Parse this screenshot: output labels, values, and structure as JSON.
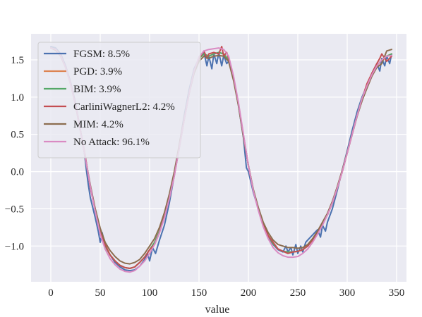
{
  "chart_data": {
    "type": "line",
    "title": "",
    "xlabel": "value",
    "ylabel": "",
    "xlim": [
      -20,
      360
    ],
    "ylim": [
      -1.48,
      1.85
    ],
    "xticks": [
      0,
      50,
      100,
      150,
      200,
      250,
      300,
      350
    ],
    "yticks": [
      -1.0,
      -0.5,
      0.0,
      0.5,
      1.0,
      1.5
    ],
    "xtick_labels": [
      "0",
      "50",
      "100",
      "150",
      "200",
      "250",
      "300",
      "350"
    ],
    "ytick_labels": [
      "−1.0",
      "−0.5",
      "0.0",
      "0.5",
      "1.0",
      "1.5"
    ],
    "grid": true,
    "background_color": "#eaeaf2",
    "legend_position": "top-left",
    "series": [
      {
        "name": "FGSM: 8.5%",
        "color": "#4c72b0",
        "x": [
          0,
          5,
          10,
          15,
          20,
          25,
          30,
          32,
          34,
          36,
          38,
          40,
          45,
          48,
          50,
          52,
          55,
          60,
          65,
          70,
          75,
          80,
          85,
          90,
          95,
          98,
          100,
          103,
          106,
          110,
          115,
          120,
          125,
          130,
          135,
          140,
          145,
          150,
          155,
          158,
          160,
          163,
          165,
          168,
          170,
          173,
          175,
          178,
          180,
          185,
          190,
          195,
          198,
          200,
          205,
          210,
          215,
          220,
          225,
          230,
          235,
          238,
          240,
          243,
          245,
          248,
          250,
          253,
          255,
          258,
          260,
          265,
          270,
          273,
          275,
          278,
          280,
          285,
          290,
          295,
          300,
          305,
          310,
          315,
          320,
          325,
          330,
          333,
          335,
          338,
          340,
          343,
          345
        ],
        "values": [
          1.68,
          1.66,
          1.58,
          1.42,
          1.2,
          0.92,
          0.55,
          0.42,
          0.25,
          0.02,
          -0.18,
          -0.35,
          -0.62,
          -0.8,
          -0.95,
          -0.82,
          -1.0,
          -1.12,
          -1.22,
          -1.28,
          -1.32,
          -1.33,
          -1.32,
          -1.27,
          -1.18,
          -1.1,
          -1.2,
          -1.02,
          -1.1,
          -0.92,
          -0.72,
          -0.42,
          -0.05,
          0.35,
          0.75,
          1.1,
          1.38,
          1.52,
          1.6,
          1.42,
          1.55,
          1.38,
          1.58,
          1.45,
          1.6,
          1.42,
          1.56,
          1.45,
          1.48,
          1.25,
          0.88,
          0.45,
          0.05,
          0.0,
          -0.28,
          -0.5,
          -0.7,
          -0.88,
          -0.98,
          -1.05,
          -1.08,
          -1.0,
          -1.08,
          -1.02,
          -1.12,
          -0.98,
          -1.1,
          -1.0,
          -1.08,
          -0.95,
          -0.92,
          -0.85,
          -0.78,
          -0.88,
          -0.72,
          -0.8,
          -0.68,
          -0.5,
          -0.25,
          0.02,
          0.28,
          0.55,
          0.8,
          1.0,
          1.15,
          1.32,
          1.45,
          1.35,
          1.52,
          1.42,
          1.55,
          1.45,
          1.58
        ]
      },
      {
        "name": "PGD: 3.9%",
        "color": "#dd8452",
        "x": [
          0,
          5,
          10,
          15,
          20,
          25,
          30,
          35,
          40,
          45,
          50,
          55,
          60,
          65,
          70,
          75,
          80,
          85,
          90,
          95,
          100,
          105,
          110,
          115,
          120,
          125,
          130,
          135,
          140,
          145,
          150,
          155,
          160,
          165,
          170,
          175,
          180,
          185,
          190,
          195,
          200,
          205,
          210,
          215,
          220,
          225,
          230,
          235,
          240,
          245,
          250,
          255,
          260,
          265,
          270,
          275,
          280,
          285,
          290,
          295,
          300,
          305,
          310,
          315,
          320,
          325,
          330,
          335,
          340,
          345
        ],
        "values": [
          1.66,
          1.64,
          1.56,
          1.4,
          1.18,
          0.9,
          0.55,
          0.18,
          -0.2,
          -0.52,
          -0.8,
          -1.0,
          -1.12,
          -1.2,
          -1.26,
          -1.29,
          -1.3,
          -1.28,
          -1.22,
          -1.15,
          -1.05,
          -0.95,
          -0.8,
          -0.6,
          -0.35,
          -0.05,
          0.32,
          0.7,
          1.05,
          1.35,
          1.52,
          1.58,
          1.55,
          1.58,
          1.6,
          1.58,
          1.5,
          1.25,
          0.9,
          0.48,
          0.08,
          -0.25,
          -0.5,
          -0.7,
          -0.86,
          -0.97,
          -1.04,
          -1.07,
          -1.08,
          -1.08,
          -1.07,
          -1.05,
          -1.0,
          -0.92,
          -0.82,
          -0.7,
          -0.58,
          -0.42,
          -0.22,
          0.0,
          0.25,
          0.5,
          0.75,
          0.98,
          1.15,
          1.3,
          1.42,
          1.5,
          1.55,
          1.58
        ]
      },
      {
        "name": "BIM: 3.9%",
        "color": "#55a868",
        "x": [
          0,
          5,
          10,
          15,
          20,
          25,
          30,
          35,
          40,
          45,
          50,
          55,
          60,
          65,
          70,
          75,
          80,
          85,
          90,
          95,
          100,
          105,
          110,
          115,
          120,
          125,
          130,
          135,
          140,
          145,
          150,
          155,
          160,
          165,
          170,
          175,
          180,
          185,
          190,
          195,
          200,
          205,
          210,
          215,
          220,
          225,
          230,
          235,
          240,
          245,
          250,
          255,
          260,
          265,
          270,
          275,
          280,
          285,
          290,
          295,
          300,
          305,
          310,
          315,
          320,
          325,
          330,
          335,
          340,
          345
        ],
        "values": [
          1.66,
          1.64,
          1.56,
          1.4,
          1.18,
          0.9,
          0.55,
          0.18,
          -0.2,
          -0.52,
          -0.8,
          -1.0,
          -1.12,
          -1.2,
          -1.26,
          -1.29,
          -1.3,
          -1.28,
          -1.22,
          -1.15,
          -1.05,
          -0.95,
          -0.8,
          -0.6,
          -0.35,
          -0.05,
          0.32,
          0.7,
          1.05,
          1.35,
          1.52,
          1.58,
          1.55,
          1.58,
          1.6,
          1.58,
          1.5,
          1.25,
          0.9,
          0.48,
          0.08,
          -0.25,
          -0.5,
          -0.7,
          -0.86,
          -0.97,
          -1.04,
          -1.07,
          -1.08,
          -1.08,
          -1.07,
          -1.05,
          -1.0,
          -0.92,
          -0.82,
          -0.7,
          -0.58,
          -0.42,
          -0.22,
          0.0,
          0.25,
          0.5,
          0.75,
          0.98,
          1.15,
          1.3,
          1.42,
          1.5,
          1.55,
          1.58
        ]
      },
      {
        "name": "CarliniWagnerL2: 4.2%",
        "color": "#c44e52",
        "x": [
          0,
          5,
          10,
          15,
          20,
          25,
          30,
          35,
          38,
          40,
          45,
          50,
          55,
          60,
          65,
          70,
          75,
          80,
          85,
          90,
          95,
          100,
          105,
          110,
          115,
          120,
          125,
          130,
          135,
          140,
          145,
          150,
          155,
          158,
          160,
          165,
          170,
          173,
          175,
          178,
          180,
          185,
          190,
          195,
          200,
          205,
          210,
          215,
          220,
          225,
          230,
          235,
          240,
          245,
          250,
          255,
          260,
          265,
          270,
          275,
          280,
          285,
          290,
          295,
          300,
          305,
          310,
          315,
          318,
          320,
          325,
          330,
          333,
          335,
          340,
          345
        ],
        "values": [
          1.66,
          1.64,
          1.56,
          1.4,
          1.18,
          0.9,
          0.55,
          0.2,
          -0.05,
          -0.22,
          -0.52,
          -0.82,
          -0.98,
          -1.12,
          -1.2,
          -1.26,
          -1.29,
          -1.3,
          -1.28,
          -1.22,
          -1.15,
          -1.05,
          -0.98,
          -0.82,
          -0.6,
          -0.35,
          -0.05,
          0.32,
          0.7,
          1.05,
          1.35,
          1.52,
          1.62,
          1.52,
          1.58,
          1.6,
          1.58,
          1.68,
          1.55,
          1.6,
          1.52,
          1.25,
          0.9,
          0.48,
          0.08,
          -0.25,
          -0.5,
          -0.72,
          -0.86,
          -0.95,
          -1.04,
          -1.07,
          -1.1,
          -1.08,
          -1.07,
          -1.05,
          -1.0,
          -0.92,
          -0.82,
          -0.7,
          -0.58,
          -0.42,
          -0.22,
          0.0,
          0.25,
          0.5,
          0.75,
          0.95,
          1.1,
          1.18,
          1.32,
          1.45,
          1.52,
          1.58,
          1.48,
          1.55
        ]
      },
      {
        "name": "MIM: 4.2%",
        "color": "#8c6d4f",
        "x": [
          0,
          5,
          10,
          15,
          20,
          25,
          30,
          35,
          40,
          45,
          50,
          55,
          60,
          65,
          70,
          75,
          80,
          85,
          90,
          95,
          100,
          105,
          110,
          115,
          120,
          125,
          130,
          135,
          140,
          145,
          150,
          155,
          160,
          165,
          170,
          175,
          180,
          185,
          190,
          195,
          200,
          205,
          210,
          215,
          220,
          225,
          230,
          235,
          240,
          245,
          250,
          255,
          260,
          265,
          270,
          275,
          280,
          285,
          290,
          295,
          300,
          305,
          310,
          315,
          320,
          325,
          330,
          335,
          340,
          345
        ],
        "values": [
          1.66,
          1.63,
          1.55,
          1.4,
          1.18,
          0.9,
          0.55,
          0.18,
          -0.18,
          -0.5,
          -0.76,
          -0.95,
          -1.06,
          -1.14,
          -1.2,
          -1.23,
          -1.24,
          -1.22,
          -1.18,
          -1.1,
          -1.0,
          -0.9,
          -0.75,
          -0.55,
          -0.3,
          0.0,
          0.36,
          0.72,
          1.05,
          1.32,
          1.48,
          1.55,
          1.52,
          1.55,
          1.56,
          1.55,
          1.48,
          1.22,
          0.88,
          0.46,
          0.08,
          -0.24,
          -0.48,
          -0.68,
          -0.82,
          -0.92,
          -0.98,
          -1.0,
          -1.02,
          -1.02,
          -1.03,
          -1.02,
          -0.98,
          -0.9,
          -0.8,
          -0.68,
          -0.56,
          -0.4,
          -0.2,
          0.02,
          0.26,
          0.5,
          0.74,
          0.95,
          1.12,
          1.28,
          1.4,
          1.45,
          1.62,
          1.64
        ]
      },
      {
        "name": "No Attack: 96.1%",
        "color": "#da8bc3",
        "x": [
          0,
          5,
          10,
          15,
          20,
          25,
          30,
          35,
          40,
          45,
          50,
          55,
          60,
          65,
          70,
          75,
          80,
          85,
          90,
          95,
          100,
          105,
          110,
          115,
          120,
          125,
          130,
          135,
          140,
          145,
          150,
          155,
          160,
          165,
          170,
          175,
          180,
          185,
          190,
          195,
          200,
          205,
          210,
          215,
          220,
          225,
          230,
          235,
          240,
          245,
          250,
          255,
          260,
          265,
          270,
          275,
          280,
          285,
          290,
          295,
          300,
          305,
          310,
          315,
          320,
          325,
          330,
          335,
          340,
          345
        ],
        "values": [
          1.66,
          1.64,
          1.56,
          1.4,
          1.18,
          0.9,
          0.55,
          0.18,
          -0.2,
          -0.54,
          -0.84,
          -1.04,
          -1.17,
          -1.25,
          -1.31,
          -1.34,
          -1.35,
          -1.33,
          -1.27,
          -1.2,
          -1.1,
          -0.98,
          -0.82,
          -0.62,
          -0.36,
          -0.06,
          0.32,
          0.7,
          1.05,
          1.35,
          1.54,
          1.62,
          1.64,
          1.65,
          1.66,
          1.64,
          1.55,
          1.28,
          0.92,
          0.5,
          0.08,
          -0.26,
          -0.52,
          -0.74,
          -0.9,
          -1.02,
          -1.09,
          -1.13,
          -1.15,
          -1.15,
          -1.14,
          -1.1,
          -1.04,
          -0.95,
          -0.84,
          -0.72,
          -0.58,
          -0.42,
          -0.22,
          0.0,
          0.25,
          0.5,
          0.75,
          0.98,
          1.15,
          1.3,
          1.42,
          1.5,
          1.55,
          1.56
        ]
      }
    ]
  }
}
